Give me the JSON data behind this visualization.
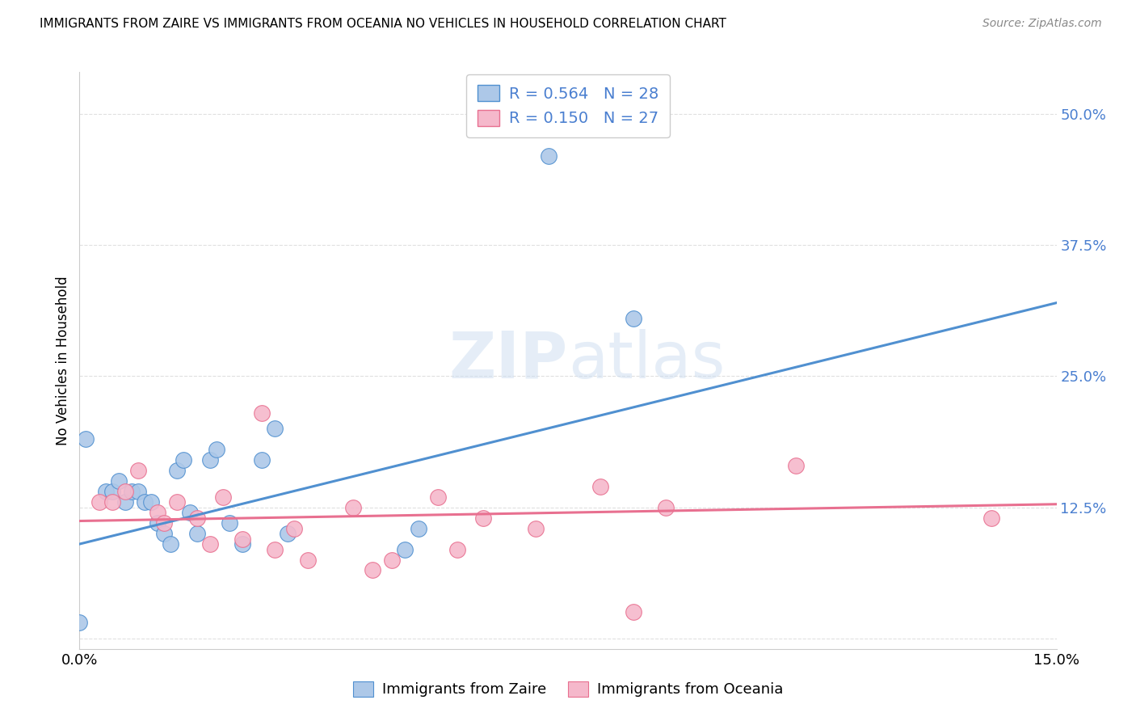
{
  "title": "IMMIGRANTS FROM ZAIRE VS IMMIGRANTS FROM OCEANIA NO VEHICLES IN HOUSEHOLD CORRELATION CHART",
  "source": "Source: ZipAtlas.com",
  "ylabel": "No Vehicles in Household",
  "xlim": [
    0.0,
    0.15
  ],
  "ylim": [
    -0.01,
    0.54
  ],
  "zaire_color": "#adc8e8",
  "oceania_color": "#f5b8cb",
  "zaire_line_color": "#5090d0",
  "oceania_line_color": "#e87090",
  "legend_text_color": "#4a7fd0",
  "zaire_R": 0.564,
  "zaire_N": 28,
  "oceania_R": 0.15,
  "oceania_N": 27,
  "watermark_zip": "ZIP",
  "watermark_atlas": "atlas",
  "zaire_points_x": [
    0.001,
    0.004,
    0.005,
    0.006,
    0.007,
    0.008,
    0.009,
    0.01,
    0.011,
    0.012,
    0.013,
    0.014,
    0.015,
    0.016,
    0.017,
    0.018,
    0.02,
    0.021,
    0.023,
    0.025,
    0.028,
    0.03,
    0.032,
    0.05,
    0.052,
    0.072,
    0.085,
    0.0
  ],
  "zaire_points_y": [
    0.19,
    0.14,
    0.14,
    0.15,
    0.13,
    0.14,
    0.14,
    0.13,
    0.13,
    0.11,
    0.1,
    0.09,
    0.16,
    0.17,
    0.12,
    0.1,
    0.17,
    0.18,
    0.11,
    0.09,
    0.17,
    0.2,
    0.1,
    0.085,
    0.105,
    0.46,
    0.305,
    0.015
  ],
  "oceania_points_x": [
    0.003,
    0.005,
    0.007,
    0.009,
    0.012,
    0.013,
    0.015,
    0.018,
    0.02,
    0.022,
    0.025,
    0.028,
    0.03,
    0.033,
    0.035,
    0.042,
    0.045,
    0.048,
    0.055,
    0.058,
    0.062,
    0.07,
    0.08,
    0.085,
    0.09,
    0.11,
    0.14
  ],
  "oceania_points_y": [
    0.13,
    0.13,
    0.14,
    0.16,
    0.12,
    0.11,
    0.13,
    0.115,
    0.09,
    0.135,
    0.095,
    0.215,
    0.085,
    0.105,
    0.075,
    0.125,
    0.065,
    0.075,
    0.135,
    0.085,
    0.115,
    0.105,
    0.145,
    0.025,
    0.125,
    0.165,
    0.115
  ],
  "zaire_line_x0": 0.0,
  "zaire_line_y0": 0.09,
  "zaire_line_x1": 0.15,
  "zaire_line_y1": 0.32,
  "oceania_line_x0": 0.0,
  "oceania_line_y0": 0.112,
  "oceania_line_x1": 0.15,
  "oceania_line_y1": 0.128,
  "grid_color": "#e0e0e0",
  "background_color": "#ffffff",
  "ytick_values": [
    0.0,
    0.125,
    0.25,
    0.375,
    0.5
  ],
  "ytick_labels": [
    "",
    "12.5%",
    "25.0%",
    "37.5%",
    "50.0%"
  ]
}
